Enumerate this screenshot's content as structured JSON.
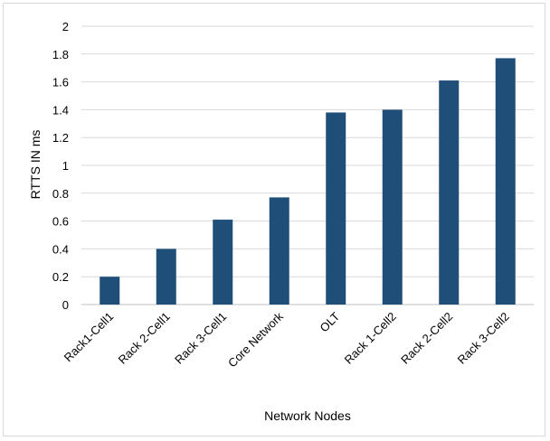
{
  "chart_data": {
    "type": "bar",
    "title": "",
    "xlabel": "Network Nodes",
    "ylabel": "RTTS IN ms",
    "categories": [
      "Rack1-Cell1",
      "Rack 2-Cell1",
      "Rack 3-Cell1",
      "Core Network",
      "OLT",
      "Rack 1-Cell2",
      "Rack 2-Cell2",
      "Rack 3-Cell2"
    ],
    "values": [
      0.2,
      0.4,
      0.61,
      0.77,
      1.38,
      1.4,
      1.61,
      1.77
    ],
    "ylim": [
      0,
      2
    ],
    "yticks": [
      "0",
      "0.2",
      "0.4",
      "0.6",
      "0.8",
      "1",
      "1.2",
      "1.4",
      "1.6",
      "1.8",
      "2"
    ],
    "grid": true,
    "legend": "none",
    "colors": {
      "bar": "#1f4e79",
      "grid": "#d9d9d9",
      "axis": "#bfbfbf"
    }
  }
}
